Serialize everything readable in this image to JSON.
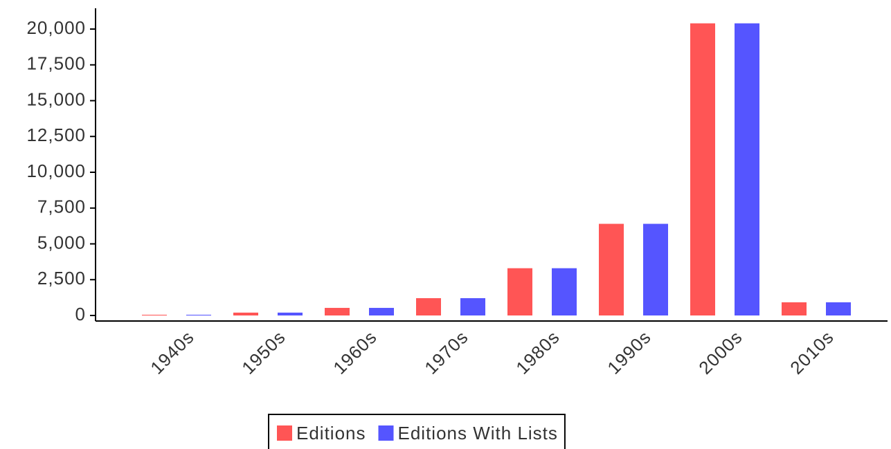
{
  "chart_data": {
    "type": "bar",
    "categories": [
      "1940s",
      "1950s",
      "1960s",
      "1970s",
      "1980s",
      "1990s",
      "2000s",
      "2010s"
    ],
    "series": [
      {
        "name": "Editions",
        "color": "#ff5555",
        "values": [
          50,
          200,
          530,
          1210,
          3300,
          6400,
          20400,
          920
        ]
      },
      {
        "name": "Editions With Lists",
        "color": "#5555ff",
        "values": [
          50,
          200,
          530,
          1210,
          3300,
          6400,
          20400,
          920
        ]
      }
    ],
    "ylim": [
      0,
      20000
    ],
    "yticks": [
      0,
      {
        "value": 2500,
        "label": "2,500"
      },
      {
        "value": 5000,
        "label": "5,000"
      },
      {
        "value": 7500,
        "label": "7,500"
      },
      {
        "value": 10000,
        "label": "10,000"
      },
      {
        "value": 12500,
        "label": "12,500"
      },
      {
        "value": 15000,
        "label": "15,000"
      },
      {
        "value": 17500,
        "label": "17,500"
      },
      {
        "value": 20000,
        "label": "20,000"
      }
    ],
    "legend": "bottom"
  }
}
